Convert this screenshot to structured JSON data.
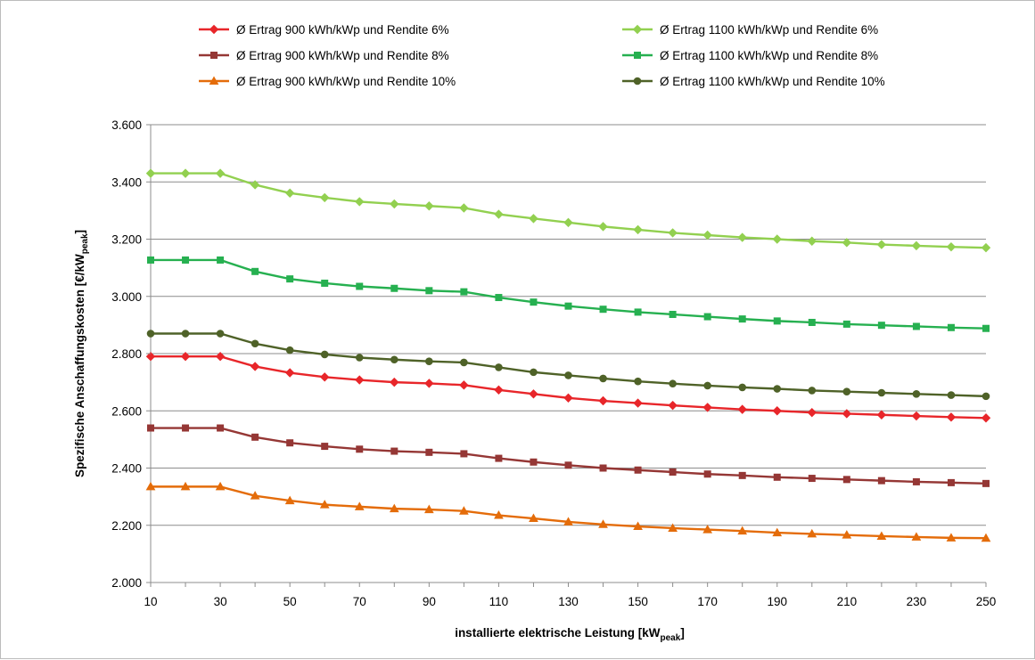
{
  "chart_data": {
    "type": "line",
    "xlabel": "installierte elektrische Leistung [kW",
    "xlabel_sub": "peak",
    "xlabel_end": "]",
    "ylabel": "Spezifische Anschaffungskosten [€/kW",
    "ylabel_sub": "peak",
    "ylabel_end": "]",
    "xlim": [
      10,
      250
    ],
    "ylim": [
      2000,
      3600
    ],
    "grid": "horizontal",
    "legend_position": "top",
    "x": [
      10,
      20,
      30,
      40,
      50,
      60,
      70,
      80,
      90,
      100,
      110,
      120,
      130,
      140,
      150,
      160,
      170,
      180,
      190,
      200,
      210,
      220,
      230,
      240,
      250
    ],
    "x_tick_values": [
      10,
      30,
      50,
      70,
      90,
      110,
      130,
      150,
      170,
      190,
      210,
      230,
      250
    ],
    "x_ticks": [
      "10",
      "30",
      "50",
      "70",
      "90",
      "110",
      "130",
      "150",
      "170",
      "190",
      "210",
      "230",
      "250"
    ],
    "y_tick_values": [
      2000,
      2200,
      2400,
      2600,
      2800,
      3000,
      3200,
      3400,
      3600
    ],
    "y_ticks": [
      "2.000",
      "2.200",
      "2.400",
      "2.600",
      "2.800",
      "3.000",
      "3.200",
      "3.400",
      "3.600"
    ],
    "series": [
      {
        "name": "Ø Ertrag  900 kWh/kWp und Rendite 6%",
        "color": "#e8262a",
        "marker": "diamond",
        "values": [
          2790,
          2790,
          2790,
          2755,
          2733,
          2718,
          2708,
          2700,
          2696,
          2690,
          2673,
          2659,
          2645,
          2635,
          2627,
          2619,
          2612,
          2605,
          2600,
          2594,
          2590,
          2586,
          2582,
          2578,
          2575
        ]
      },
      {
        "name": "Ø Ertrag  900 kWh/kWp und Rendite 8%",
        "color": "#953735",
        "marker": "square",
        "values": [
          2540,
          2540,
          2540,
          2508,
          2488,
          2476,
          2466,
          2459,
          2455,
          2450,
          2434,
          2421,
          2410,
          2400,
          2393,
          2386,
          2379,
          2374,
          2368,
          2364,
          2360,
          2356,
          2352,
          2349,
          2346
        ]
      },
      {
        "name": "Ø Ertrag  900 kWh/kWp und Rendite 10%",
        "color": "#e46c0a",
        "marker": "triangle",
        "values": [
          2335,
          2335,
          2335,
          2303,
          2286,
          2272,
          2265,
          2258,
          2255,
          2250,
          2235,
          2224,
          2212,
          2203,
          2196,
          2190,
          2185,
          2180,
          2174,
          2170,
          2166,
          2162,
          2159,
          2156,
          2155
        ]
      },
      {
        "name": "Ø Ertrag  1100 kWh/kWp und Rendite 6%",
        "color": "#92d050",
        "marker": "diamond",
        "values": [
          3430,
          3430,
          3430,
          3390,
          3361,
          3345,
          3331,
          3323,
          3316,
          3309,
          3287,
          3272,
          3258,
          3244,
          3233,
          3222,
          3214,
          3206,
          3200,
          3193,
          3188,
          3181,
          3177,
          3173,
          3170
        ]
      },
      {
        "name": "Ø Ertrag  1100 kWh/kWp und Rendite 8%",
        "color": "#26b050",
        "marker": "square",
        "values": [
          3127,
          3127,
          3127,
          3087,
          3061,
          3046,
          3035,
          3028,
          3020,
          3016,
          2996,
          2980,
          2966,
          2955,
          2945,
          2937,
          2929,
          2921,
          2914,
          2909,
          2903,
          2899,
          2895,
          2891,
          2888
        ]
      },
      {
        "name": "Ø Ertrag  1100 kWh/kWp und Rendite 10%",
        "color": "#4f6228",
        "marker": "circle",
        "values": [
          2870,
          2870,
          2870,
          2835,
          2812,
          2797,
          2786,
          2779,
          2773,
          2769,
          2752,
          2735,
          2724,
          2713,
          2703,
          2695,
          2688,
          2682,
          2677,
          2671,
          2667,
          2663,
          2659,
          2655,
          2651
        ]
      }
    ]
  }
}
